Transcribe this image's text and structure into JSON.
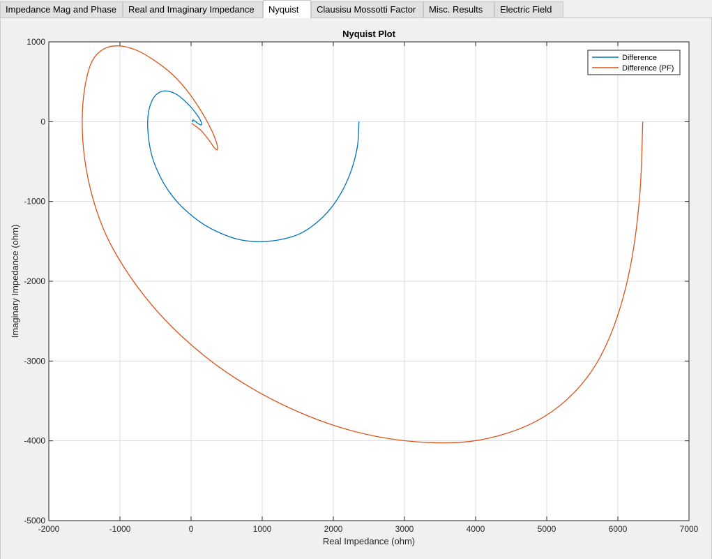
{
  "tabs": [
    {
      "label": "Impedance Mag and Phase",
      "active": false
    },
    {
      "label": "Real and Imaginary Impedance",
      "active": false
    },
    {
      "label": "Nyquist",
      "active": true
    },
    {
      "label": "Clausisu Mossotti Factor",
      "active": false
    },
    {
      "label": "Misc. Results",
      "active": false
    },
    {
      "label": "Electric Field",
      "active": false
    }
  ],
  "chart_data": {
    "type": "line",
    "title": "Nyquist Plot",
    "xlabel": "Real Impedance (ohm)",
    "ylabel": "Imaginary Impedance (ohm)",
    "xlim": [
      -2000,
      7000
    ],
    "ylim": [
      -5000,
      1000
    ],
    "xticks": [
      "-2000",
      "-1000",
      "0",
      "1000",
      "2000",
      "3000",
      "4000",
      "5000",
      "6000",
      "7000"
    ],
    "yticks": [
      "-5000",
      "-4000",
      "-3000",
      "-2000",
      "-1000",
      "0",
      "1000"
    ],
    "grid": true,
    "legend_position": "top-right",
    "series": [
      {
        "name": "Difference",
        "color": "#0072BD",
        "x": [
          2360,
          2340,
          2260,
          2130,
          1960,
          1760,
          1540,
          1300,
          1070,
          850,
          640,
          420,
          200,
          0,
          -180,
          -330,
          -450,
          -540,
          -590,
          -610,
          -600,
          -560,
          -500,
          -410,
          -310,
          -200,
          -100,
          0,
          80,
          130,
          150,
          140,
          110,
          80,
          50,
          30,
          20,
          20,
          25,
          30
        ],
        "y": [
          0,
          -300,
          -590,
          -860,
          -1090,
          -1270,
          -1400,
          -1470,
          -1500,
          -1500,
          -1470,
          -1400,
          -1300,
          -1170,
          -1020,
          -850,
          -660,
          -460,
          -260,
          -60,
          110,
          240,
          330,
          380,
          380,
          340,
          270,
          180,
          90,
          20,
          -30,
          -40,
          -30,
          -10,
          10,
          20,
          15,
          5,
          0,
          -5
        ]
      },
      {
        "name": "Difference (PF)",
        "color": "#D95319",
        "x": [
          6350,
          6310,
          6190,
          5990,
          5720,
          5380,
          4960,
          4460,
          3900,
          3310,
          2700,
          2090,
          1490,
          910,
          370,
          -120,
          -550,
          -910,
          -1200,
          -1390,
          -1500,
          -1530,
          -1490,
          -1390,
          -1230,
          -1020,
          -780,
          -520,
          -260,
          -40,
          150,
          290,
          360,
          370,
          330,
          250,
          150,
          70,
          20,
          10
        ],
        "y": [
          0,
          -900,
          -1750,
          -2450,
          -3000,
          -3400,
          -3700,
          -3900,
          -4010,
          -4020,
          -3960,
          -3830,
          -3630,
          -3370,
          -3060,
          -2700,
          -2300,
          -1870,
          -1410,
          -930,
          -440,
          40,
          450,
          760,
          910,
          950,
          900,
          770,
          590,
          370,
          120,
          -110,
          -270,
          -350,
          -330,
          -230,
          -120,
          -60,
          -30,
          -20
        ]
      }
    ]
  }
}
